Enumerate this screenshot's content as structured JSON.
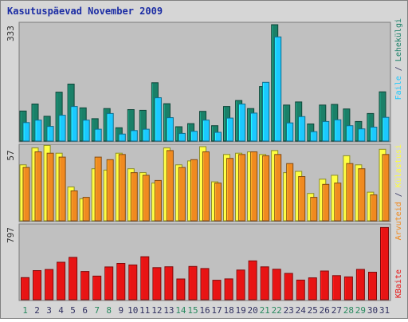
{
  "title": "Kasutuspäevad November 2009",
  "colors": {
    "background": "#d6d6d6",
    "panel": "#c0c0c0",
    "title": "#1c2da4",
    "pages": "#1a8068",
    "files": "#1cc8ff",
    "hits": "#f08a20",
    "visits": "#ffff40",
    "kb": "#e81414",
    "weekend_label": "#2a8a60",
    "weekday_label": "#303060"
  },
  "chart_data": {
    "type": "bar",
    "title": "Kasutuspäevad November 2009",
    "categories": [
      "1",
      "2",
      "3",
      "4",
      "5",
      "6",
      "7",
      "8",
      "9",
      "10",
      "11",
      "12",
      "13",
      "14",
      "15",
      "16",
      "17",
      "18",
      "19",
      "20",
      "21",
      "22",
      "23",
      "24",
      "25",
      "26",
      "27",
      "28",
      "29",
      "30",
      "31"
    ],
    "weekend_days": [
      "1",
      "7",
      "8",
      "14",
      "15",
      "21",
      "22",
      "28",
      "29"
    ],
    "panels": [
      {
        "name": "top",
        "ymax_label": "333",
        "ylim": [
          0,
          333
        ],
        "series": [
          {
            "name": "Lehekülgi",
            "color": "#1a8068",
            "values": [
              86,
              106,
              71,
              140,
              163,
              95,
              64,
              93,
              38,
              90,
              88,
              167,
              107,
              41,
              50,
              85,
              44,
              99,
              116,
              93,
              156,
              333,
              103,
              112,
              49,
              103,
              105,
              92,
              56,
              79,
              141
            ]
          },
          {
            "name": "Faile",
            "color": "#1cc8ff",
            "values": [
              53,
              60,
              42,
              74,
              99,
              60,
              34,
              79,
              20,
              30,
              34,
              124,
              67,
              22,
              28,
              60,
              25,
              66,
              106,
              80,
              168,
              298,
              52,
              70,
              27,
              56,
              61,
              44,
              35,
              40,
              68
            ]
          }
        ]
      },
      {
        "name": "middle",
        "ymax_label": "57",
        "ylim": [
          0,
          57
        ],
        "series": [
          {
            "name": "Külastusi",
            "color": "#ffff40",
            "values": [
              43,
              56,
              58,
              52,
              26,
              17,
              40,
              39,
              52,
              40,
              37,
              29,
              56,
              43,
              46,
              57,
              30,
              51,
              52,
              53,
              51,
              54,
              37,
              38,
              21,
              32,
              35,
              50,
              43,
              22,
              55
            ]
          },
          {
            "name": "Arvuteid",
            "color": "#f08a20",
            "values": [
              41,
              53,
              52,
              49,
              23,
              18,
              49,
              47,
              51,
              37,
              35,
              31,
              54,
              41,
              47,
              53,
              29,
              48,
              51,
              53,
              50,
              51,
              44,
              34,
              18,
              28,
              29,
              44,
              40,
              20,
              51
            ]
          }
        ]
      },
      {
        "name": "bottom",
        "ymax_label": "797",
        "ylim": [
          0,
          797
        ],
        "series": [
          {
            "name": "KBaite",
            "color": "#e81414",
            "values": [
              240,
              316,
              328,
              407,
              460,
              307,
              256,
              356,
              394,
              378,
              467,
              348,
              358,
              225,
              361,
              339,
              211,
              226,
              322,
              422,
              357,
              331,
              286,
              213,
              237,
              312,
              262,
              248,
              329,
              299,
              785
            ]
          }
        ]
      }
    ],
    "legend": [
      {
        "text": "Lehekülgi",
        "color": "#1a8068"
      },
      {
        "text": "Faile",
        "color": "#1cc8ff"
      },
      {
        "text": "Külastusi",
        "color": "#ffff40"
      },
      {
        "text": "Arvuteid",
        "color": "#f08a20"
      },
      {
        "text": "KBaite",
        "color": "#e81414"
      }
    ]
  }
}
